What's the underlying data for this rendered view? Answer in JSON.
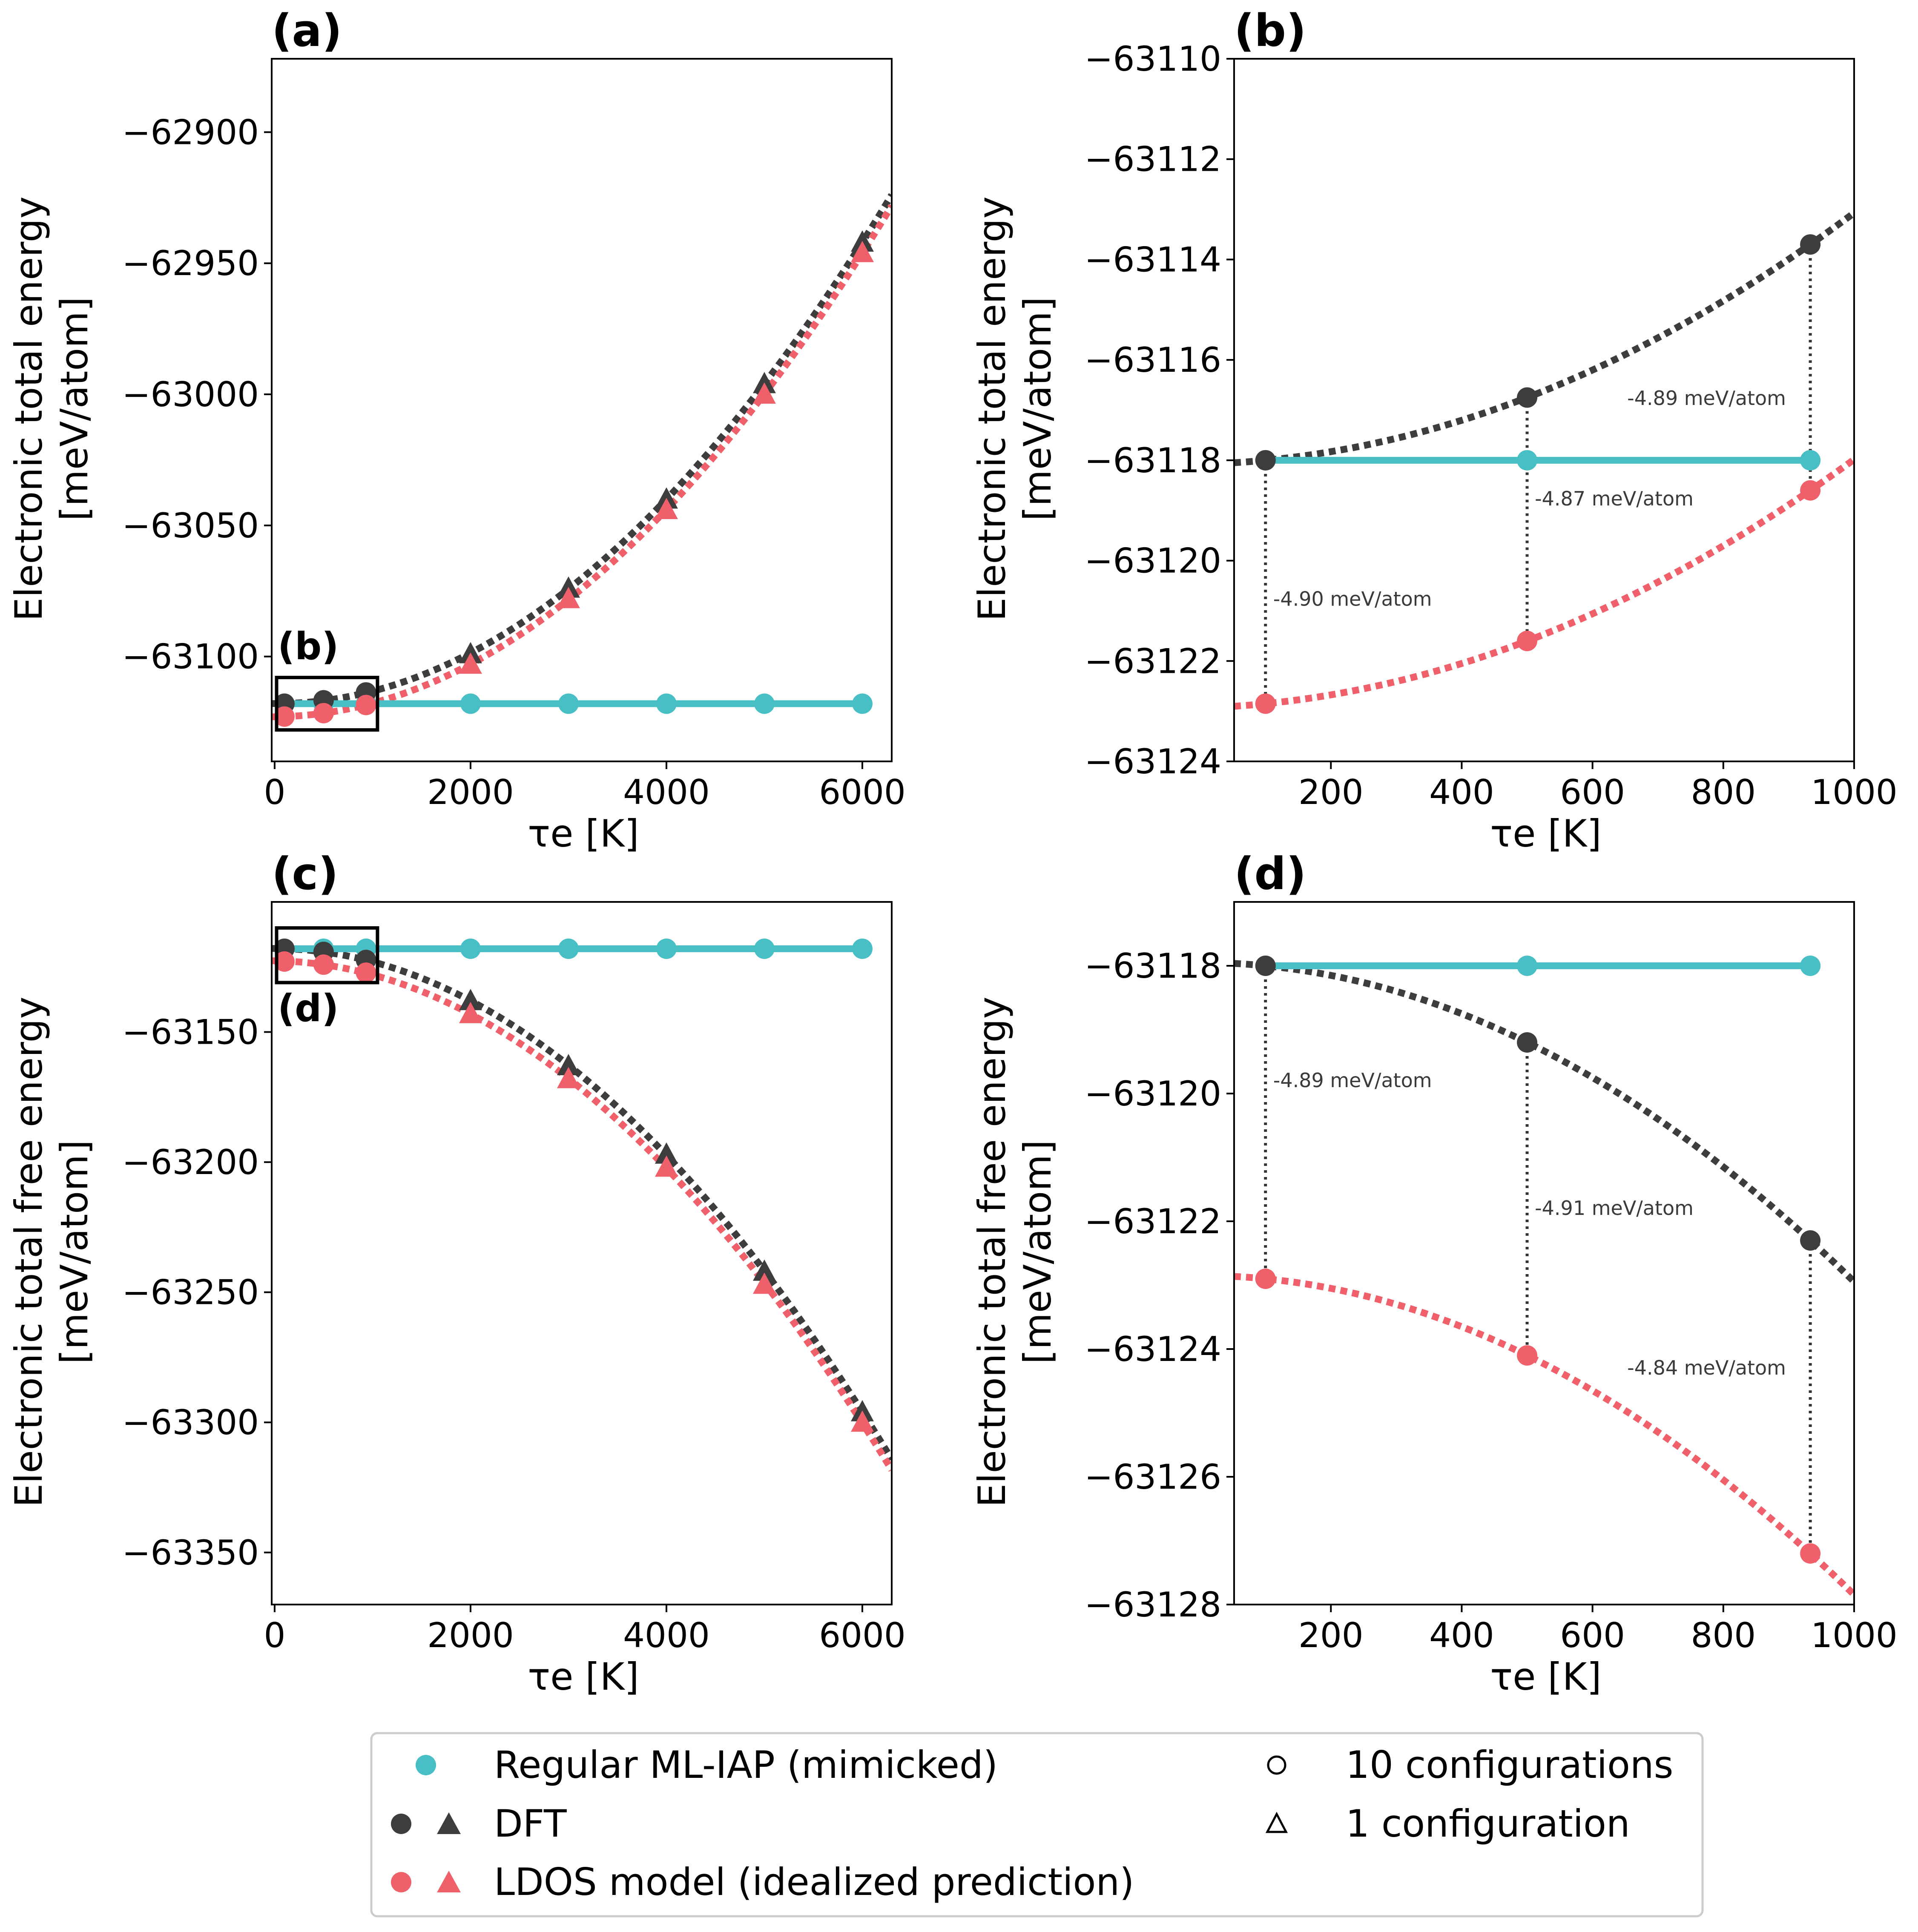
{
  "colors": {
    "ml_iap": "#47bfc5",
    "dft": "#3d3d3d",
    "ldos": "#f0606a",
    "axis": "#000000"
  },
  "axis_labels": {
    "x": "τe [K]",
    "y_energy_line1": "Electronic total energy",
    "y_free_line1": "Electronic total free energy",
    "y_unit": "[meV/atom]"
  },
  "legend": {
    "entries": [
      "Regular ML-IAP (mimicked)",
      "DFT",
      "LDOS model (idealized prediction)",
      "10 configurations",
      "1 configuration"
    ]
  },
  "chart_data": [
    {
      "panel": "(a)",
      "type": "line",
      "inset_label": "(b)",
      "xlabel": "τe [K]",
      "ylabel": "Electronic total energy [meV/atom]",
      "xlim": [
        -30,
        6300
      ],
      "ylim": [
        -63140,
        -62872
      ],
      "xticks": [
        0,
        2000,
        4000,
        6000
      ],
      "xtick_labels": [
        "0",
        "2000",
        "4000",
        "6000"
      ],
      "yticks": [
        -62900,
        -62950,
        -63000,
        -63050,
        -63100
      ],
      "ytick_labels": [
        "−62900",
        "−62950",
        "−63000",
        "−63050",
        "−63100"
      ],
      "series": [
        {
          "name": "Regular ML-IAP (mimicked)",
          "marker": "circle",
          "x": [
            100,
            500,
            933,
            2000,
            3000,
            4000,
            5000,
            6000
          ],
          "y": [
            -63118,
            -63118,
            -63118,
            -63118,
            -63118,
            -63118,
            -63118,
            -63118
          ]
        },
        {
          "name": "DFT",
          "marker": "circle",
          "x": [
            100,
            500,
            933
          ],
          "y": [
            -63118,
            -63116.7,
            -63113.7
          ]
        },
        {
          "name": "DFT",
          "marker": "triangle",
          "x": [
            2000,
            3000,
            4000,
            5000,
            6000
          ],
          "y": [
            -63099,
            -63074,
            -63040,
            -62996,
            -62942
          ]
        },
        {
          "name": "LDOS model (idealized prediction)",
          "marker": "circle",
          "x": [
            100,
            500,
            933
          ],
          "y": [
            -63122.9,
            -63121.6,
            -63118.5
          ]
        },
        {
          "name": "LDOS model (idealized prediction)",
          "marker": "triangle",
          "x": [
            2000,
            3000,
            4000,
            5000,
            6000
          ],
          "y": [
            -63103,
            -63078,
            -63044,
            -63000,
            -62946
          ]
        }
      ]
    },
    {
      "panel": "(b)",
      "type": "line",
      "xlabel": "τe [K]",
      "ylabel": "Electronic total energy [meV/atom]",
      "xlim": [
        52,
        1000
      ],
      "ylim": [
        -63124,
        -63110
      ],
      "xticks": [
        200,
        400,
        600,
        800,
        1000
      ],
      "xtick_labels": [
        "200",
        "400",
        "600",
        "800",
        "1000"
      ],
      "yticks": [
        -63110,
        -63112,
        -63114,
        -63116,
        -63118,
        -63120,
        -63122,
        -63124
      ],
      "ytick_labels": [
        "−63110",
        "−63112",
        "−63114",
        "−63116",
        "−63118",
        "−63120",
        "−63122",
        "−63124"
      ],
      "series": [
        {
          "name": "Regular ML-IAP (mimicked)",
          "marker": "circle",
          "x": [
            100,
            500,
            933
          ],
          "y": [
            -63118,
            -63118,
            -63118
          ]
        },
        {
          "name": "DFT",
          "marker": "circle",
          "x": [
            100,
            500,
            933
          ],
          "y": [
            -63118,
            -63116.75,
            -63113.7
          ]
        },
        {
          "name": "LDOS model (idealized prediction)",
          "marker": "circle",
          "x": [
            100,
            500,
            933
          ],
          "y": [
            -63122.85,
            -63121.6,
            -63118.6
          ]
        }
      ],
      "annotations": [
        {
          "text": "-4.90 meV/atom",
          "x": 100,
          "y": -63120.9
        },
        {
          "text": "-4.87 meV/atom",
          "x": 500,
          "y": -63118.9
        },
        {
          "text": "-4.89 meV/atom",
          "x": 933,
          "y": -63116.9
        }
      ]
    },
    {
      "panel": "(c)",
      "type": "line",
      "inset_label": "(d)",
      "xlabel": "τe [K]",
      "ylabel": "Electronic total free energy [meV/atom]",
      "xlim": [
        -30,
        6300
      ],
      "ylim": [
        -63370,
        -63100
      ],
      "xticks": [
        0,
        2000,
        4000,
        6000
      ],
      "xtick_labels": [
        "0",
        "2000",
        "4000",
        "6000"
      ],
      "yticks": [
        -63150,
        -63200,
        -63250,
        -63300,
        -63350
      ],
      "ytick_labels": [
        "−63150",
        "−63200",
        "−63250",
        "−63300",
        "−63350"
      ],
      "series": [
        {
          "name": "Regular ML-IAP (mimicked)",
          "marker": "circle",
          "x": [
            100,
            500,
            933,
            2000,
            3000,
            4000,
            5000,
            6000
          ],
          "y": [
            -63118,
            -63118,
            -63118,
            -63118,
            -63118,
            -63118,
            -63118,
            -63118
          ]
        },
        {
          "name": "DFT",
          "marker": "circle",
          "x": [
            100,
            500,
            933
          ],
          "y": [
            -63118,
            -63119.2,
            -63122.3
          ]
        },
        {
          "name": "DFT",
          "marker": "triangle",
          "x": [
            2000,
            3000,
            4000,
            5000,
            6000
          ],
          "y": [
            -63138,
            -63163,
            -63197,
            -63242,
            -63296
          ]
        },
        {
          "name": "LDOS model (idealized prediction)",
          "marker": "circle",
          "x": [
            100,
            500,
            933
          ],
          "y": [
            -63122.9,
            -63124.1,
            -63127.2
          ]
        },
        {
          "name": "LDOS model (idealized prediction)",
          "marker": "triangle",
          "x": [
            2000,
            3000,
            4000,
            5000,
            6000
          ],
          "y": [
            -63143,
            -63168,
            -63202,
            -63247,
            -63300
          ]
        }
      ]
    },
    {
      "panel": "(d)",
      "type": "line",
      "xlabel": "τe [K]",
      "ylabel": "Electronic total free energy [meV/atom]",
      "xlim": [
        52,
        1000
      ],
      "ylim": [
        -63128,
        -63117
      ],
      "xticks": [
        200,
        400,
        600,
        800,
        1000
      ],
      "xtick_labels": [
        "200",
        "400",
        "600",
        "800",
        "1000"
      ],
      "yticks": [
        -63118,
        -63120,
        -63122,
        -63124,
        -63126,
        -63128
      ],
      "ytick_labels": [
        "−63118",
        "−63120",
        "−63122",
        "−63124",
        "−63126",
        "−63128"
      ],
      "series": [
        {
          "name": "Regular ML-IAP (mimicked)",
          "marker": "circle",
          "x": [
            100,
            500,
            933
          ],
          "y": [
            -63118,
            -63118,
            -63118
          ]
        },
        {
          "name": "DFT",
          "marker": "circle",
          "x": [
            100,
            500,
            933
          ],
          "y": [
            -63118,
            -63119.2,
            -63122.3
          ]
        },
        {
          "name": "LDOS model (idealized prediction)",
          "marker": "circle",
          "x": [
            100,
            500,
            933
          ],
          "y": [
            -63122.9,
            -63124.1,
            -63127.2
          ]
        }
      ],
      "annotations": [
        {
          "text": "-4.89 meV/atom",
          "x": 100,
          "y": -63119.9
        },
        {
          "text": "-4.91 meV/atom",
          "x": 500,
          "y": -63121.9
        },
        {
          "text": "-4.84 meV/atom",
          "x": 933,
          "y": -63124.4
        }
      ]
    }
  ]
}
